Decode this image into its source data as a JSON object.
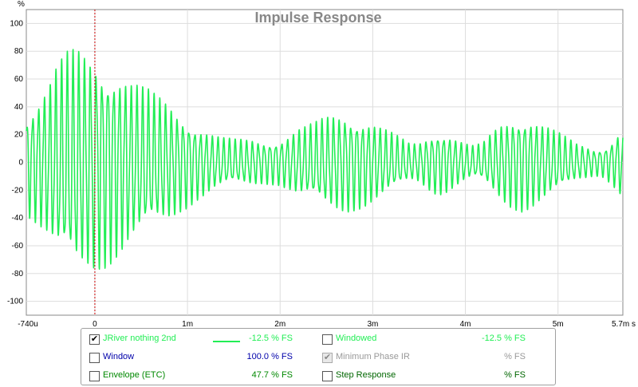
{
  "chart_data": {
    "type": "line",
    "title": "Impulse Response",
    "ylabel": "%",
    "xlabel": "",
    "x_unit": "s",
    "xlim": [
      -0.00074,
      0.0057
    ],
    "ylim": [
      -110,
      110
    ],
    "grid": true,
    "x_ticks": [
      {
        "value": -0.00074,
        "label": "-740u"
      },
      {
        "value": 0,
        "label": "0"
      },
      {
        "value": 0.001,
        "label": "1m"
      },
      {
        "value": 0.002,
        "label": "2m"
      },
      {
        "value": 0.003,
        "label": "3m"
      },
      {
        "value": 0.004,
        "label": "4m"
      },
      {
        "value": 0.005,
        "label": "5m"
      },
      {
        "value": 0.0057,
        "label": "5.7m s"
      }
    ],
    "y_ticks": [
      100,
      80,
      60,
      40,
      20,
      0,
      -20,
      -40,
      -60,
      -80,
      -100
    ],
    "marker_x": 0,
    "series": [
      {
        "name": "JRiver nothing 2nd",
        "color": "#22ee55",
        "oscillation_period_s": 6.25e-05,
        "envelope": {
          "x": [
            -0.00074,
            -0.0006,
            -0.0005,
            -0.0004,
            -0.0003,
            -0.0002,
            -0.0001,
            0,
            0.0001,
            0.0002,
            0.0003,
            0.0004,
            0.0005,
            0.0006,
            0.0007,
            0.0008,
            0.0009,
            0.001,
            0.0011,
            0.0012,
            0.0013,
            0.0014,
            0.0015,
            0.0016,
            0.0017,
            0.0018,
            0.0019,
            0.002,
            0.0021,
            0.0022,
            0.0023,
            0.0024,
            0.0025,
            0.0026,
            0.0027,
            0.0028,
            0.0029,
            0.003,
            0.0031,
            0.0032,
            0.0033,
            0.0034,
            0.0035,
            0.0036,
            0.0037,
            0.0038,
            0.0039,
            0.004,
            0.0041,
            0.0042,
            0.0043,
            0.0044,
            0.0045,
            0.0046,
            0.0047,
            0.0048,
            0.0049,
            0.005,
            0.0051,
            0.0052,
            0.0053,
            0.0054,
            0.0055,
            0.0056,
            0.0057
          ],
          "amplitude": [
            38,
            48,
            58,
            72,
            80,
            84,
            82,
            80,
            77,
            72,
            66,
            60,
            56,
            52,
            48,
            44,
            38,
            33,
            28,
            24,
            20,
            18,
            17,
            17,
            17,
            16,
            16,
            17,
            21,
            25,
            27,
            30,
            34,
            36,
            37,
            35,
            33,
            30,
            26,
            22,
            18,
            14,
            15,
            20,
            24,
            22,
            18,
            14,
            12,
            15,
            23,
            30,
            34,
            36,
            34,
            30,
            26,
            22,
            18,
            14,
            12,
            10,
            11,
            18,
            27
          ]
        }
      }
    ]
  },
  "legend": {
    "rows": [
      {
        "left": {
          "checked": true,
          "disabled": false,
          "label": "JRiver nothing 2nd",
          "value": "-12.5 % FS",
          "color": "#22ee55",
          "swatch": true
        },
        "right": {
          "checked": false,
          "disabled": false,
          "label": "Windowed",
          "value": "-12.5 % FS",
          "color": "#22ee55"
        }
      },
      {
        "left": {
          "checked": false,
          "disabled": false,
          "label": "Window",
          "value": "100.0 % FS",
          "color": "#0000aa",
          "swatch": false
        },
        "right": {
          "checked": true,
          "disabled": true,
          "label": "Minimum Phase IR",
          "value": "% FS",
          "color": "#999999"
        }
      },
      {
        "left": {
          "checked": false,
          "disabled": false,
          "label": "Envelope (ETC)",
          "value": "47.7 % FS",
          "color": "#008800",
          "swatch": false
        },
        "right": {
          "checked": false,
          "disabled": false,
          "label": "Step Response",
          "value": "% FS",
          "color": "#006600"
        }
      }
    ]
  }
}
